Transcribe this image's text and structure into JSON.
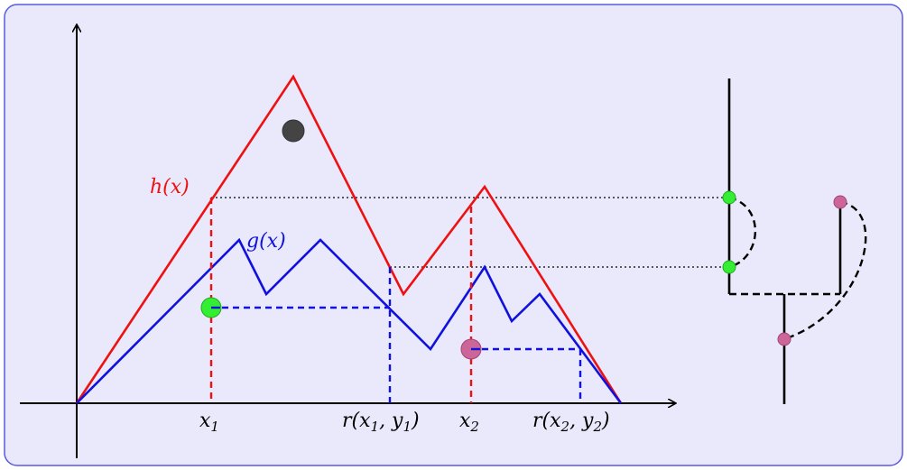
{
  "labels": {
    "h": "h(x)",
    "g": "g(x)",
    "x1_base": "x",
    "x1_sub": "1",
    "x2_base": "x",
    "x2_sub": "2",
    "r1_prefix": "r(x",
    "r1_sub_a": "1",
    "r1_mid": ", y",
    "r1_sub_b": "1",
    "r1_close": ")",
    "r2_prefix": "r(x",
    "r2_sub_a": "2",
    "r2_mid": ", y",
    "r2_sub_b": "2",
    "r2_close": ")"
  },
  "colors": {
    "background": "#e9e9fb",
    "border": "#5a5ae0",
    "h_curve": "#ee1111",
    "g_curve": "#1111dd",
    "axis": "#000000",
    "green_point": "#33ee33",
    "pink_point": "#cc6699",
    "dark_point": "#444444"
  }
}
